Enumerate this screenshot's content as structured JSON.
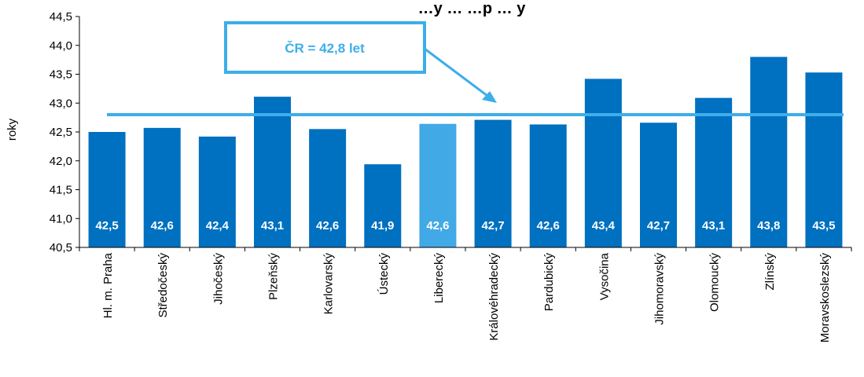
{
  "chart_data": {
    "type": "bar",
    "title": "…y … …p … y",
    "ylabel": "roky",
    "xlabel": "",
    "ylim": [
      40.5,
      44.5
    ],
    "ytick_step": 0.5,
    "y_tick_labels": [
      "40,5",
      "41,0",
      "41,5",
      "42,0",
      "42,5",
      "43,0",
      "43,5",
      "44,0",
      "44,5"
    ],
    "categories": [
      "Hl. m. Praha",
      "Středočeský",
      "Jihočeský",
      "Plzeňský",
      "Karlovarský",
      "Ústecký",
      "Liberecký",
      "Královéhradecký",
      "Pardubický",
      "Vysočina",
      "Jihomoravský",
      "Olomoucký",
      "Zlínský",
      "Moravskoslezský"
    ],
    "values": [
      42.5,
      42.57,
      42.42,
      43.11,
      42.55,
      41.94,
      42.64,
      42.71,
      42.63,
      43.42,
      42.66,
      43.09,
      43.8,
      43.53
    ],
    "data_labels": [
      "42,5",
      "42,6",
      "42,4",
      "43,1",
      "42,6",
      "41,9",
      "42,6",
      "42,7",
      "42,6",
      "43,4",
      "42,7",
      "43,1",
      "43,8",
      "43,5"
    ],
    "highlight_index": 6,
    "reference_line": {
      "value": 42.8,
      "label": "ČR = 42,8 let"
    },
    "colors": {
      "bar": "#0070c0",
      "highlight": "#41a9e6",
      "line": "#3daee9",
      "axis": "#000000"
    }
  }
}
